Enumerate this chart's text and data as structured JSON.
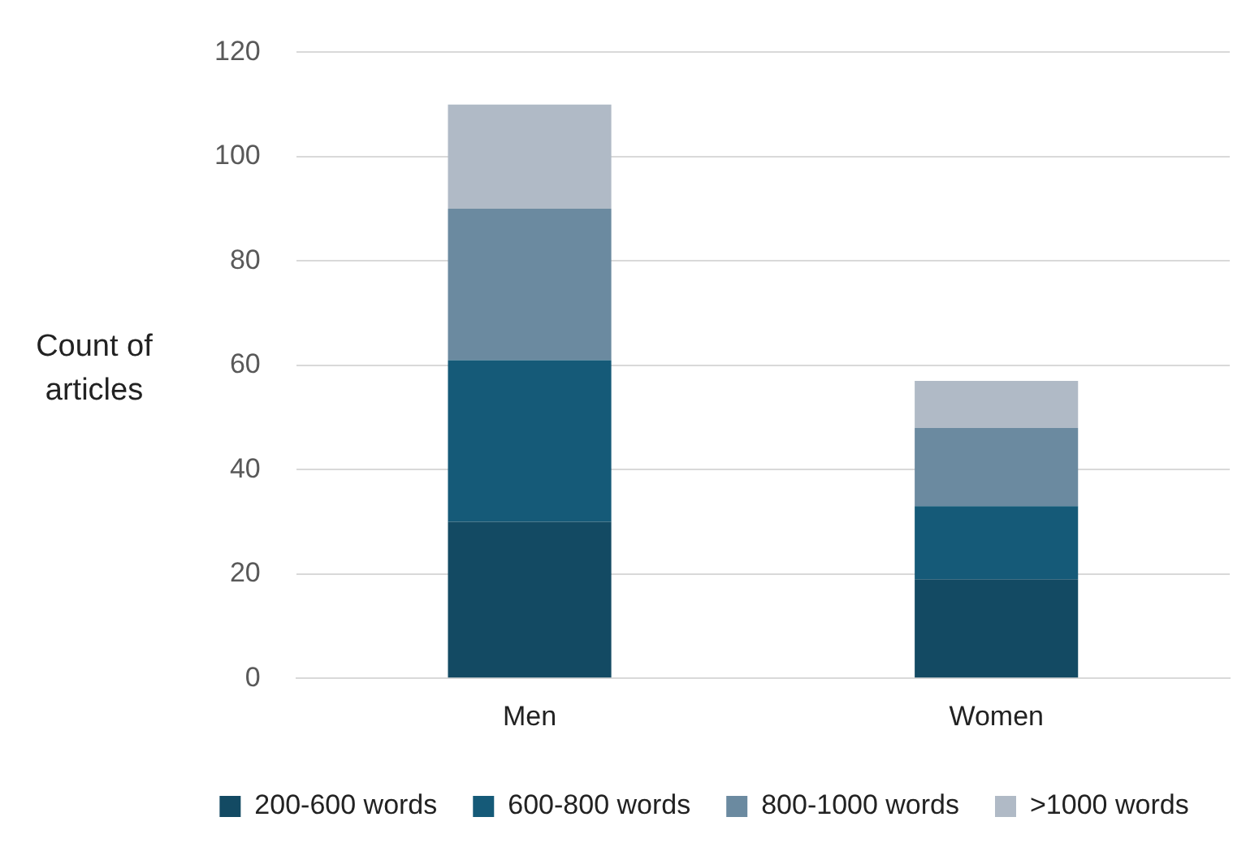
{
  "chart_data": {
    "type": "bar",
    "stacked": true,
    "ylabel": "Count of articles",
    "categories": [
      "Men",
      "Women"
    ],
    "series": [
      {
        "name": "200-600 words",
        "color": "#134a63",
        "values": [
          30,
          19
        ]
      },
      {
        "name": "600-800 words",
        "color": "#155a78",
        "values": [
          31,
          14
        ]
      },
      {
        "name": "800-1000 words",
        "color": "#6b8aa0",
        "values": [
          29,
          15
        ]
      },
      {
        "name": ">1000 words",
        "color": "#b0bac6",
        "values": [
          20,
          9
        ]
      }
    ],
    "ylim": [
      0,
      120
    ],
    "yticks": [
      0,
      20,
      40,
      60,
      80,
      100,
      120
    ],
    "grid": "y",
    "legend": "bottom"
  }
}
